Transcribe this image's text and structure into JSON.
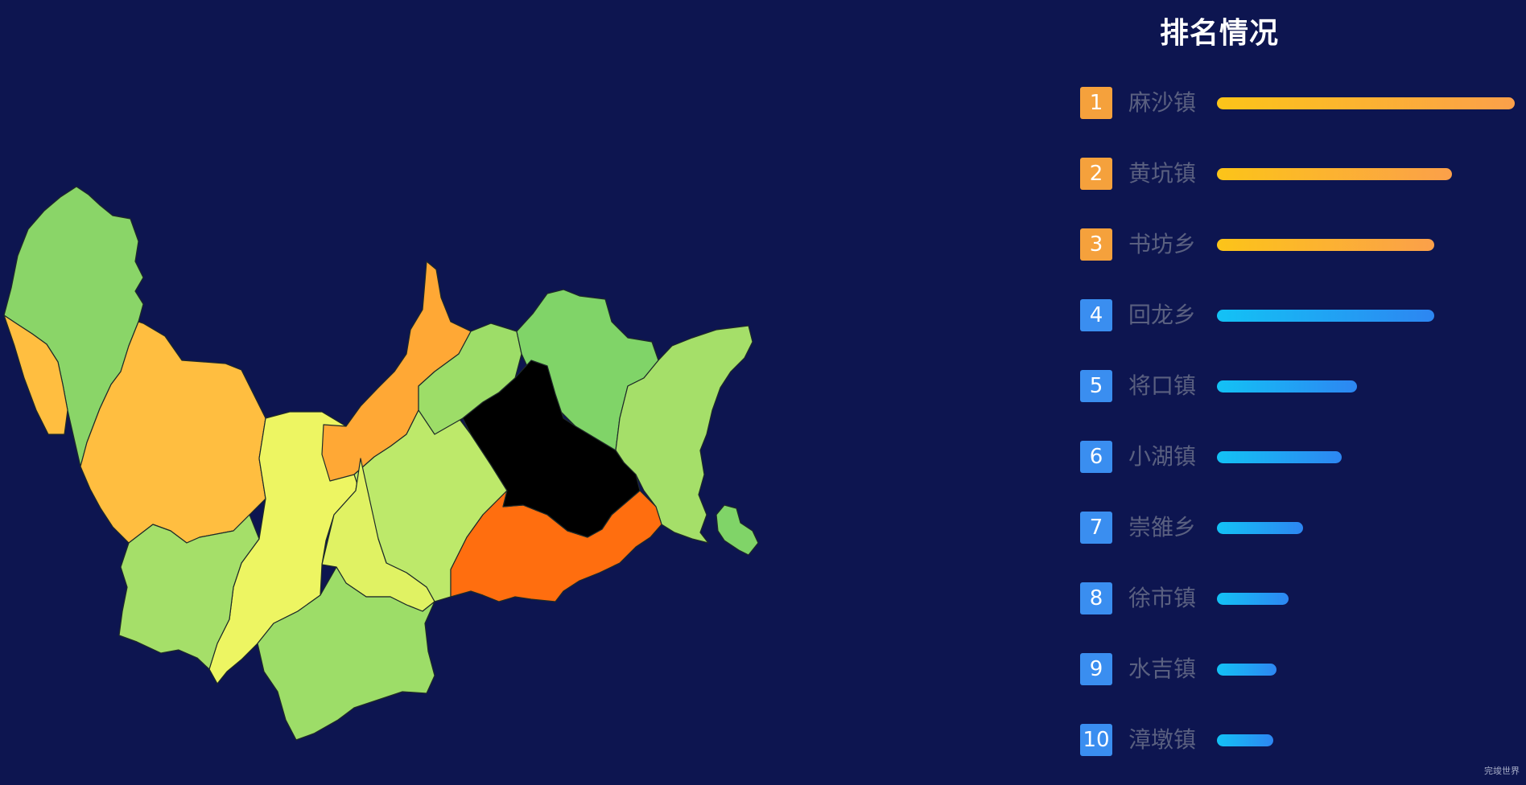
{
  "title": "排名情况",
  "watermark": "完竣世界",
  "colors": {
    "background": "#0d1550",
    "badge_top3": "#f5a13c",
    "badge_rest": "#3a8ef0",
    "bar_top3": [
      "#fcc419",
      "#fba04a"
    ],
    "bar_rest": [
      "#13c2f5",
      "#2d86f2"
    ]
  },
  "chart_data": [
    {
      "type": "map",
      "regions": [
        {
          "name": "麻沙镇",
          "color": "#ff6e0f"
        },
        {
          "name": "",
          "color": "#ffbe40"
        },
        {
          "name": "",
          "color": "#ffbe40"
        },
        {
          "name": "",
          "color": "#ffa835"
        },
        {
          "name": "",
          "color": "#edf562"
        },
        {
          "name": "",
          "color": "#e0f263"
        },
        {
          "name": "",
          "color": "#bde96a"
        },
        {
          "name": "",
          "color": "#a5df69"
        },
        {
          "name": "",
          "color": "#9ddd68"
        },
        {
          "name": "",
          "color": "#9ddd68"
        },
        {
          "name": "",
          "color": "#a5df69"
        },
        {
          "name": "",
          "color": "#8ad568"
        },
        {
          "name": "",
          "color": "#80d468"
        },
        {
          "name": "",
          "color": "#80d468"
        }
      ]
    },
    {
      "type": "bar",
      "orientation": "horizontal",
      "title": "排名情况",
      "ranks": [
        "1",
        "2",
        "3",
        "4",
        "5",
        "6",
        "7",
        "8",
        "9",
        "10"
      ],
      "categories": [
        "麻沙镇",
        "黄坑镇",
        "书坊乡",
        "回龙乡",
        "将口镇",
        "小湖镇",
        "崇雒乡",
        "徐市镇",
        "水吉镇",
        "漳墩镇"
      ],
      "values": [
        100,
        79,
        73,
        73,
        47,
        42,
        29,
        24,
        20,
        19
      ],
      "xlim": [
        0,
        100
      ]
    }
  ]
}
